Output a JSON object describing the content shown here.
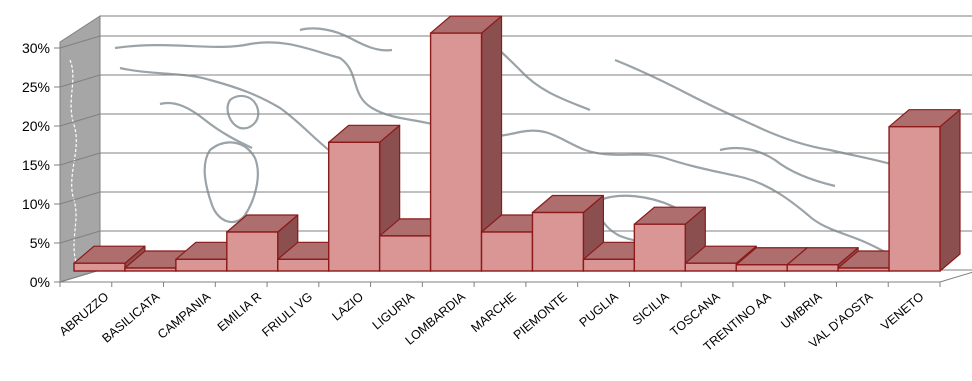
{
  "chart_data": {
    "type": "bar",
    "categories": [
      "ABRUZZO",
      "BASILICATA",
      "CAMPANIA",
      "EMILIA R",
      "FRIULI VG",
      "LAZIO",
      "LIGURIA",
      "LOMBARDIA",
      "MARCHE",
      "PIEMONTE",
      "PUGLIA",
      "SICILIA",
      "TOSCANA",
      "TRENTINO AA",
      "UMBRIA",
      "VAL D'AOSTA",
      "VENETO"
    ],
    "values": [
      1.0,
      0.3,
      1.5,
      5.0,
      1.5,
      16.5,
      4.5,
      30.5,
      5.0,
      7.5,
      1.5,
      6.0,
      1.0,
      0.8,
      0.8,
      0.3,
      18.5
    ],
    "value_unit": "%",
    "y_ticks": [
      "0%",
      "5%",
      "10%",
      "15%",
      "20%",
      "25%",
      "30%"
    ],
    "ylim": [
      0,
      30
    ],
    "grid": true,
    "style": "3d-column",
    "background": "map of Italy (outline)",
    "colors": {
      "bar_front": "#d99695",
      "bar_top": "#ae6e6e",
      "bar_side": "#8c4f4f",
      "bar_stroke": "#8b1a1a",
      "back_wall": "#ffffff",
      "side_wall": "#a6a6a6",
      "grid": "#808080",
      "map_line": "#9aa3a8"
    }
  }
}
